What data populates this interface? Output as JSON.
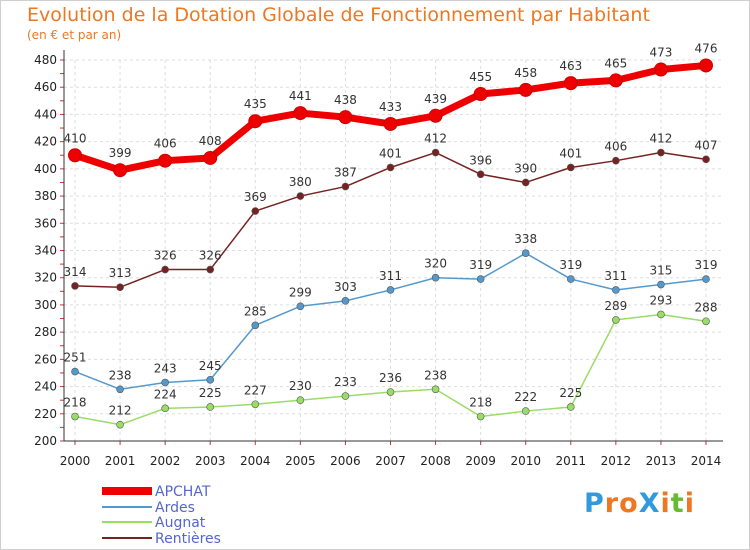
{
  "title": "Evolution de la Dotation Globale de Fonctionnement par Habitant",
  "subtitle": "(en € et par an)",
  "logo": {
    "text": "ProXiti",
    "colors": [
      "#3399dd",
      "#ee7722",
      "#ee7722",
      "#3399dd",
      "#ee7722",
      "#66bb33",
      "#ee7722"
    ]
  },
  "chart_data": {
    "type": "line",
    "x": [
      "2000",
      "2001",
      "2002",
      "2003",
      "2004",
      "2005",
      "2006",
      "2007",
      "2008",
      "2009",
      "2010",
      "2011",
      "2012",
      "2013",
      "2014"
    ],
    "ylim": [
      200,
      480
    ],
    "yticks": [
      "200",
      "220",
      "240",
      "260",
      "280",
      "300",
      "320",
      "340",
      "360",
      "380",
      "400",
      "420",
      "440",
      "460",
      "480"
    ],
    "grid": true,
    "legend_position": "bottom-left",
    "series": [
      {
        "name": "APCHAT",
        "color": "#ee0000",
        "values": [
          410,
          399,
          406,
          408,
          435,
          441,
          438,
          433,
          439,
          455,
          458,
          463,
          465,
          473,
          476
        ]
      },
      {
        "name": "Ardes",
        "color": "#5599cc",
        "values": [
          251,
          238,
          243,
          245,
          285,
          299,
          303,
          311,
          320,
          319,
          338,
          319,
          311,
          315,
          319
        ]
      },
      {
        "name": "Augnat",
        "color": "#99dd66",
        "values": [
          218,
          212,
          224,
          225,
          227,
          230,
          233,
          236,
          238,
          218,
          222,
          225,
          289,
          293,
          288
        ]
      },
      {
        "name": "Rentières",
        "color": "#772222",
        "values": [
          314,
          313,
          326,
          326,
          369,
          380,
          387,
          401,
          412,
          396,
          390,
          401,
          406,
          412,
          407
        ]
      }
    ]
  }
}
